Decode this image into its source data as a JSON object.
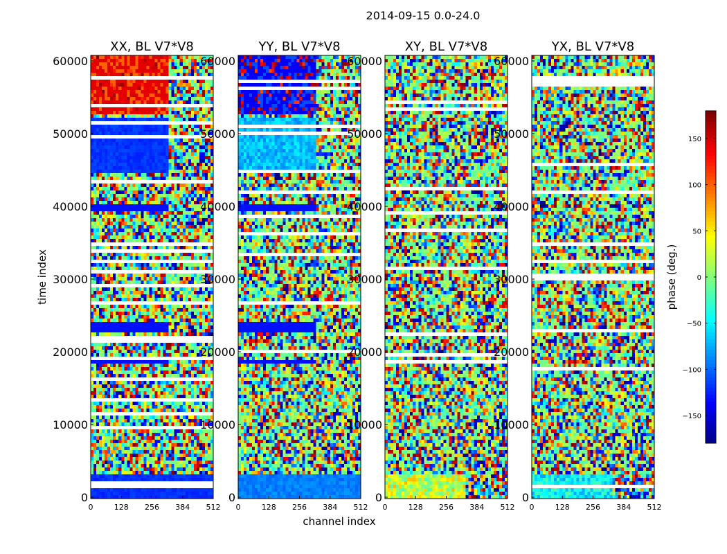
{
  "chart_data": [
    {
      "type": "heatmap",
      "title": "XX, BL V7*V8",
      "xlabel": "",
      "ylabel": "time index",
      "xlim": [
        0,
        512
      ],
      "ylim": [
        0,
        60000
      ],
      "x_ticks": [
        "0",
        "128",
        "256",
        "384",
        "512"
      ],
      "y_ticks": [
        "0",
        "10000",
        "20000",
        "30000",
        "40000",
        "50000",
        "60000"
      ],
      "value_units": "phase (deg.)"
    },
    {
      "type": "heatmap",
      "title": "YY, BL V7*V8",
      "xlabel": "channel index",
      "ylabel": "",
      "xlim": [
        0,
        512
      ],
      "ylim": [
        0,
        60000
      ],
      "x_ticks": [
        "0",
        "128",
        "256",
        "384",
        "512"
      ],
      "y_ticks": [
        "0",
        "10000",
        "20000",
        "30000",
        "40000",
        "50000",
        "60000"
      ],
      "value_units": "phase (deg.)"
    },
    {
      "type": "heatmap",
      "title": "XY, BL V7*V8",
      "xlabel": "",
      "ylabel": "",
      "xlim": [
        0,
        512
      ],
      "ylim": [
        0,
        60000
      ],
      "x_ticks": [
        "0",
        "128",
        "256",
        "384",
        "512"
      ],
      "y_ticks": [
        "0",
        "10000",
        "20000",
        "30000",
        "40000",
        "50000",
        "60000"
      ],
      "value_units": "phase (deg.)"
    },
    {
      "type": "heatmap",
      "title": "YX, BL V7*V8",
      "xlabel": "",
      "ylabel": "",
      "xlim": [
        0,
        512
      ],
      "ylim": [
        0,
        60000
      ],
      "x_ticks": [
        "0",
        "128",
        "256",
        "384",
        "512"
      ],
      "y_ticks": [
        "0",
        "10000",
        "20000",
        "30000",
        "40000",
        "50000",
        "60000"
      ],
      "value_units": "phase (deg.)"
    }
  ],
  "figure": {
    "suptitle": "2014-09-15 0.0-24.0",
    "colorbar": {
      "label": "phase (deg.)",
      "range": [
        -180,
        180
      ],
      "ticks": [
        "150",
        "100",
        "50",
        "0",
        "−50",
        "−100",
        "−150"
      ],
      "tick_values": [
        150,
        100,
        50,
        0,
        -50,
        -100,
        -150
      ],
      "colormap": "jet"
    }
  }
}
